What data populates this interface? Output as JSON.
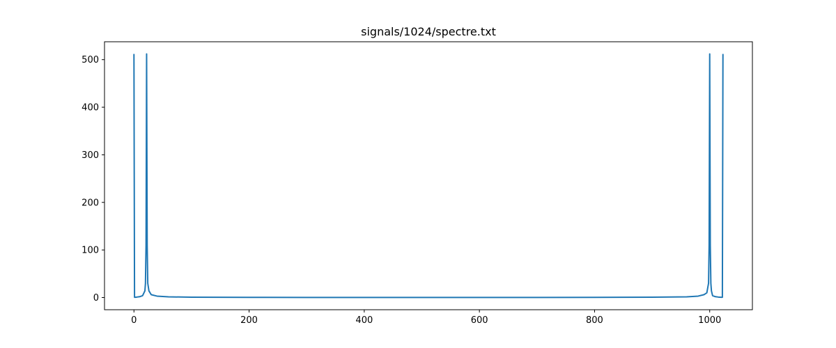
{
  "chart_data": {
    "type": "line",
    "title": "signals/1024/spectre.txt",
    "xlabel": "",
    "ylabel": "",
    "xlim": [
      -51.15,
      1074.15
    ],
    "ylim": [
      -25.6,
      537.6
    ],
    "xticks": [
      0,
      200,
      400,
      600,
      800,
      1000
    ],
    "yticks": [
      0,
      100,
      200,
      300,
      400,
      500
    ],
    "grid": false,
    "line_color": "#1f77b4",
    "series": [
      {
        "x": [
          0,
          1,
          2,
          5,
          10,
          15,
          19,
          20,
          21,
          22,
          23,
          24,
          26,
          30,
          40,
          60,
          100,
          200,
          300,
          400,
          512,
          600,
          700,
          800,
          900,
          960,
          980,
          990,
          995,
          998,
          999,
          1000,
          1001,
          1002,
          1003,
          1005,
          1010,
          1015,
          1020,
          1021,
          1022,
          1023
        ],
        "values": [
          512,
          0.5,
          0.6,
          1.0,
          1.8,
          4.0,
          14,
          30,
          110,
          512,
          110,
          30,
          14,
          6,
          3.0,
          1.5,
          0.7,
          0.3,
          0.2,
          0.15,
          0.1,
          0.15,
          0.2,
          0.3,
          0.7,
          1.5,
          3.0,
          6,
          10,
          30,
          110,
          512,
          110,
          30,
          14,
          4.0,
          1.8,
          1.0,
          0.6,
          0.5,
          0.5,
          512
        ]
      }
    ]
  }
}
